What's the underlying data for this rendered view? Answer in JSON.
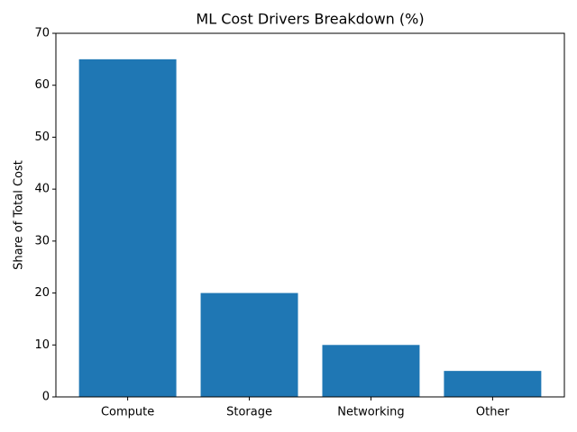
{
  "chart_data": {
    "type": "bar",
    "title": "ML Cost Drivers Breakdown (%)",
    "y_label": "Share of Total Cost",
    "categories": [
      "Compute",
      "Storage",
      "Networking",
      "Other"
    ],
    "values": [
      65,
      20,
      10,
      5
    ],
    "color": "#1f77b4",
    "ylim": [
      0,
      70
    ],
    "yticks": [
      0,
      10,
      20,
      30,
      40,
      50,
      60,
      70
    ],
    "grid": false
  }
}
